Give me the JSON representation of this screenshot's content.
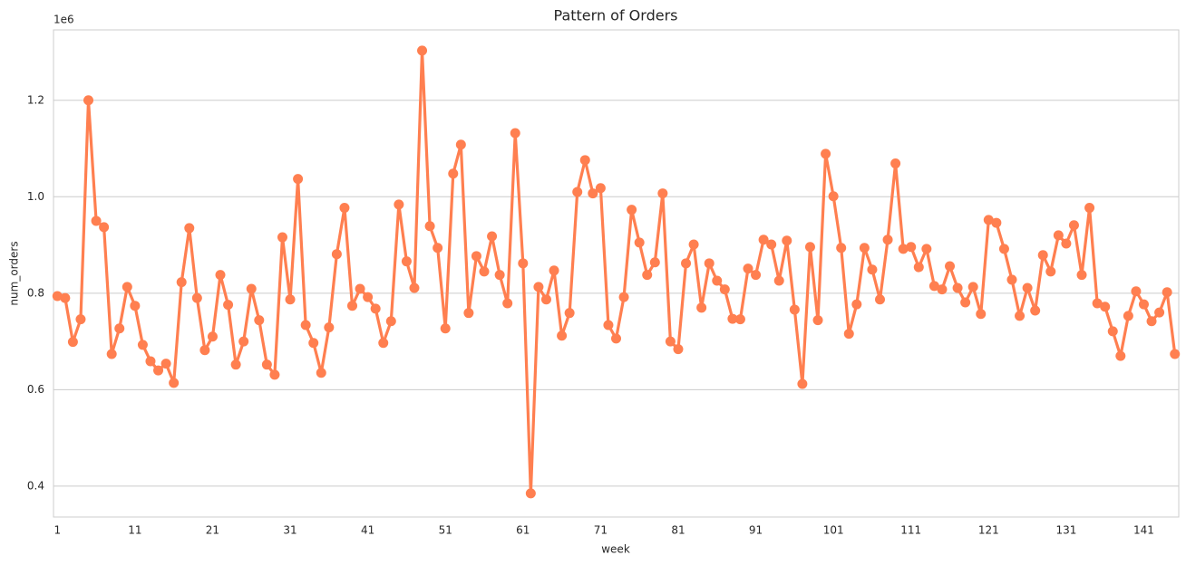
{
  "chart_data": {
    "type": "pointline",
    "title": "Pattern of Orders",
    "x_label": "week",
    "y_label": "num_orders",
    "y_offset_label": "1e6",
    "categories": [
      1,
      null,
      null,
      null,
      null,
      null,
      null,
      null,
      null,
      null,
      11,
      null,
      null,
      null,
      null,
      null,
      null,
      null,
      null,
      null,
      21,
      null,
      null,
      null,
      null,
      null,
      null,
      null,
      null,
      null,
      31,
      null,
      null,
      null,
      null,
      null,
      null,
      null,
      null,
      null,
      41,
      null,
      null,
      null,
      null,
      null,
      null,
      null,
      null,
      null,
      51,
      null,
      null,
      null,
      null,
      null,
      null,
      null,
      null,
      null,
      61,
      null,
      null,
      null,
      null,
      null,
      null,
      null,
      null,
      null,
      71,
      null,
      null,
      null,
      null,
      null,
      null,
      null,
      null,
      null,
      81,
      null,
      null,
      null,
      null,
      null,
      null,
      null,
      null,
      null,
      91,
      null,
      null,
      null,
      null,
      null,
      null,
      null,
      null,
      null,
      101,
      null,
      null,
      null,
      null,
      null,
      null,
      null,
      null,
      null,
      111,
      null,
      null,
      null,
      null,
      null,
      null,
      null,
      null,
      null,
      121,
      null,
      null,
      null,
      null,
      null,
      null,
      null,
      null,
      null,
      131,
      null,
      null,
      null,
      null,
      null,
      null,
      null,
      null,
      null,
      141,
      null,
      null,
      null,
      null
    ],
    "values": [
      0.794,
      0.79,
      0.699,
      0.746,
      1.2,
      0.95,
      0.937,
      0.674,
      0.727,
      0.813,
      0.774,
      0.693,
      0.659,
      0.64,
      0.654,
      0.614,
      0.823,
      0.935,
      0.79,
      0.682,
      0.71,
      0.838,
      0.776,
      0.652,
      0.7,
      0.809,
      0.744,
      0.652,
      0.631,
      0.916,
      0.787,
      1.037,
      0.734,
      0.697,
      0.635,
      0.729,
      0.881,
      0.977,
      0.774,
      0.809,
      0.792,
      0.768,
      0.697,
      0.742,
      0.984,
      0.866,
      0.811,
      1.303,
      0.939,
      0.894,
      0.727,
      1.048,
      1.108,
      0.759,
      0.877,
      0.845,
      0.918,
      0.838,
      0.779,
      1.132,
      0.862,
      0.385,
      0.813,
      0.787,
      0.847,
      0.712,
      0.759,
      1.01,
      1.076,
      1.007,
      1.018,
      0.734,
      0.706,
      0.792,
      0.973,
      0.905,
      0.838,
      0.864,
      1.007,
      0.7,
      0.684,
      0.862,
      0.901,
      0.77,
      0.862,
      0.826,
      0.808,
      0.747,
      0.746,
      0.851,
      0.838,
      0.911,
      0.901,
      0.826,
      0.909,
      0.766,
      0.612,
      0.896,
      0.744,
      1.089,
      1.001,
      0.894,
      0.716,
      0.777,
      0.894,
      0.849,
      0.787,
      0.911,
      1.069,
      0.892,
      0.896,
      0.854,
      0.892,
      0.815,
      0.808,
      0.856,
      0.811,
      0.781,
      0.813,
      0.757,
      0.952,
      0.946,
      0.892,
      0.828,
      0.753,
      0.811,
      0.764,
      0.879,
      0.845,
      0.92,
      0.903,
      0.941,
      0.838,
      0.977,
      0.779,
      0.772,
      0.721,
      0.67,
      0.753,
      0.804,
      0.777,
      0.742,
      0.76,
      0.802,
      0.674
    ],
    "color": "#ff7f50",
    "ylim": [
      0.336,
      1.346
    ],
    "yticks": [
      0.4,
      0.6,
      0.8,
      {
        "value": 1,
        "label": "1.0"
      },
      1.2
    ],
    "grid": true
  }
}
